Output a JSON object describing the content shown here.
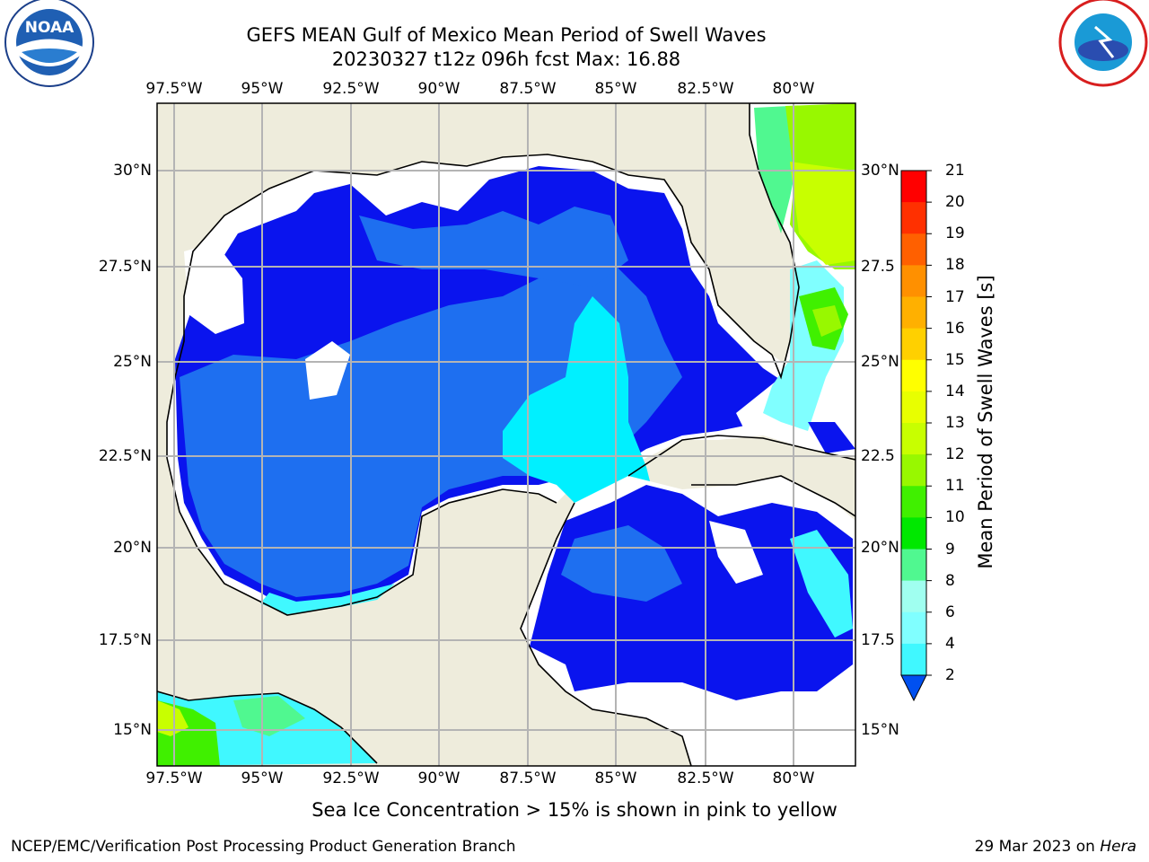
{
  "title": {
    "line1": "GEFS MEAN Gulf of Mexico Mean Period of Swell Waves",
    "line2": "20230327 t12z 096h fcst   Max: 16.88"
  },
  "map": {
    "lon_labels": [
      "97.5°W",
      "95°W",
      "92.5°W",
      "90°W",
      "87.5°W",
      "85°W",
      "82.5°W",
      "80°W"
    ],
    "lat_labels": [
      "30°N",
      "27.5°N",
      "25°N",
      "22.5°N",
      "20°N",
      "17.5°N",
      "15°N"
    ],
    "right_lat_labels": [
      "30°N",
      "27.5",
      "25°N",
      "22.5",
      "20°N",
      "17.5",
      "15°N"
    ],
    "colors": {
      "land": "#eeecdc",
      "grid": "#b4b4b4"
    }
  },
  "colorbar": {
    "label": "Mean Period of Swell Waves [s]",
    "ticks": [
      "21",
      "20",
      "19",
      "18",
      "17",
      "16",
      "15",
      "14",
      "13",
      "12",
      "11",
      "10",
      "9",
      "8",
      "6",
      "4",
      "2"
    ],
    "colors": [
      "#0050f0",
      "#00f0ff",
      "#40f8ff",
      "#80ffff",
      "#a0fff0",
      "#50f890",
      "#00e800",
      "#40f000",
      "#98f800",
      "#c8ff00",
      "#e8ff00",
      "#ffff00",
      "#ffd000",
      "#ffb000",
      "#ff9000",
      "#ff6000",
      "#ff3000",
      "#ff0000"
    ]
  },
  "logos": {
    "left": "NOAA",
    "right": "NATIONAL WEATHER SERVICE"
  },
  "subtitle": "Sea Ice Concentration > 15% is shown in pink to yellow",
  "footer": {
    "left": "NCEP/EMC/Verification Post Processing Product Generation Branch",
    "right_date": "29 Mar 2023 on",
    "right_host": "Hera"
  }
}
